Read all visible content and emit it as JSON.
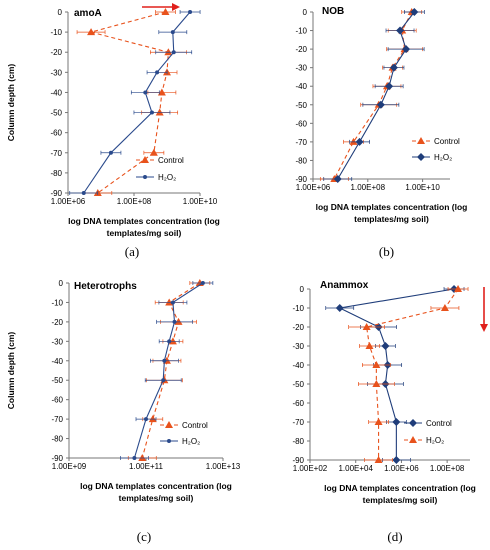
{
  "figure": {
    "panel_labels": [
      "(a)",
      "(b)",
      "(c)",
      "(d)"
    ],
    "y_axis_title": "Column depth (cm)",
    "x_axis_title_line1": "log DNA templates concentration (log",
    "x_axis_title_line2": "templates/mg soil)"
  },
  "colors": {
    "control": "#e8521c",
    "h2o2": "#2a4a8c",
    "h2o2_diamond": "#1f3d7a",
    "arrow": "#e0201c"
  },
  "chart_data": [
    {
      "panel": "(a)",
      "type": "line",
      "title": "amoA",
      "xscale": "log",
      "xlim": [
        1000000,
        10000000000
      ],
      "xticks": [
        "1.00E+06",
        "1.00E+08",
        "1.00E+10"
      ],
      "ylim": [
        -90,
        0
      ],
      "yticks": [
        "0",
        "-10",
        "-20",
        "-30",
        "-40",
        "-50",
        "-60",
        "-70",
        "-80",
        "-90"
      ],
      "depths": [
        0,
        -10,
        -20,
        -30,
        -40,
        -50,
        -70,
        -90
      ],
      "series": [
        {
          "name": "Control",
          "marker": "triangle",
          "dash": true,
          "values": [
            900000000,
            5000000,
            1100000000,
            1000000000,
            700000000,
            600000000,
            400000000,
            8000000
          ]
        },
        {
          "name": "H₂O₂",
          "marker": "dot",
          "dash": false,
          "values": [
            5000000000,
            1500000000,
            1600000000,
            500000000,
            220000000,
            350000000,
            20000000,
            3000000
          ]
        }
      ],
      "legend": "bottom-right",
      "arrow": "right-top"
    },
    {
      "panel": "(b)",
      "type": "line",
      "title": "NOB",
      "xscale": "log",
      "xlim": [
        1000000,
        100000000000
      ],
      "xticks": [
        "1.00E+06",
        "1.00E+08",
        "1.00E+10"
      ],
      "ylim": [
        -90,
        0
      ],
      "yticks": [
        "0",
        "-10",
        "-20",
        "-30",
        "-40",
        "-50",
        "-60",
        "-70",
        "-80",
        "-90"
      ],
      "depths": [
        0,
        -10,
        -20,
        -30,
        -40,
        -50,
        -70,
        -90
      ],
      "series": [
        {
          "name": "Control",
          "marker": "triangle",
          "dash": true,
          "values": [
            4000000000,
            1800000000,
            2200000000,
            800000000,
            500000000,
            250000000,
            30000000,
            6000000
          ]
        },
        {
          "name": "H₂O₂",
          "marker": "diamond",
          "dash": false,
          "values": [
            5000000000,
            1500000000,
            2500000000,
            900000000,
            600000000,
            300000000,
            50000000,
            8000000
          ]
        }
      ],
      "legend": "right-middle"
    },
    {
      "panel": "(c)",
      "type": "line",
      "title": "Heterotrophs",
      "xscale": "log",
      "xlim": [
        1000000000,
        10000000000000
      ],
      "xticks": [
        "1.00E+09",
        "1.00E+11",
        "1.00E+13"
      ],
      "ylim": [
        -90,
        0
      ],
      "yticks": [
        "0",
        "-10",
        "-20",
        "-30",
        "-40",
        "-50",
        "-60",
        "-70",
        "-80",
        "-90"
      ],
      "depths": [
        0,
        -10,
        -20,
        -30,
        -40,
        -50,
        -70,
        -90
      ],
      "series": [
        {
          "name": "Control",
          "marker": "triangle",
          "dash": true,
          "values": [
            2500000000000,
            400000000000,
            700000000000,
            500000000000,
            350000000000,
            300000000000,
            150000000000,
            80000000000
          ]
        },
        {
          "name": "H₂O₂",
          "marker": "dot",
          "dash": false,
          "values": [
            3000000000000,
            500000000000,
            550000000000,
            400000000000,
            300000000000,
            280000000000,
            100000000000,
            50000000000
          ]
        }
      ],
      "legend": "bottom-right"
    },
    {
      "panel": "(d)",
      "type": "line",
      "title": "Anammox",
      "xscale": "log",
      "xlim": [
        100,
        1000000000
      ],
      "xticks": [
        "1.00E+02",
        "1.00E+04",
        "1.00E+06",
        "1.00E+08"
      ],
      "ylim": [
        -90,
        0
      ],
      "yticks": [
        "0",
        "-10",
        "-20",
        "-30",
        "-40",
        "-50",
        "-60",
        "-70",
        "-80",
        "-90"
      ],
      "depths": [
        0,
        -10,
        -20,
        -30,
        -40,
        -50,
        -70,
        -90
      ],
      "series": [
        {
          "name": "Control",
          "marker": "diamond",
          "dash": false,
          "values": [
            200000000,
            2000,
            100000,
            200000,
            250000,
            200000,
            600000,
            600000
          ]
        },
        {
          "name": "H₂O₂",
          "marker": "triangle",
          "dash": true,
          "values": [
            300000000,
            80000000,
            30000,
            40000,
            80000,
            80000,
            100000,
            100000
          ]
        }
      ],
      "legend": "bottom-right",
      "arrow": "down-right"
    }
  ]
}
